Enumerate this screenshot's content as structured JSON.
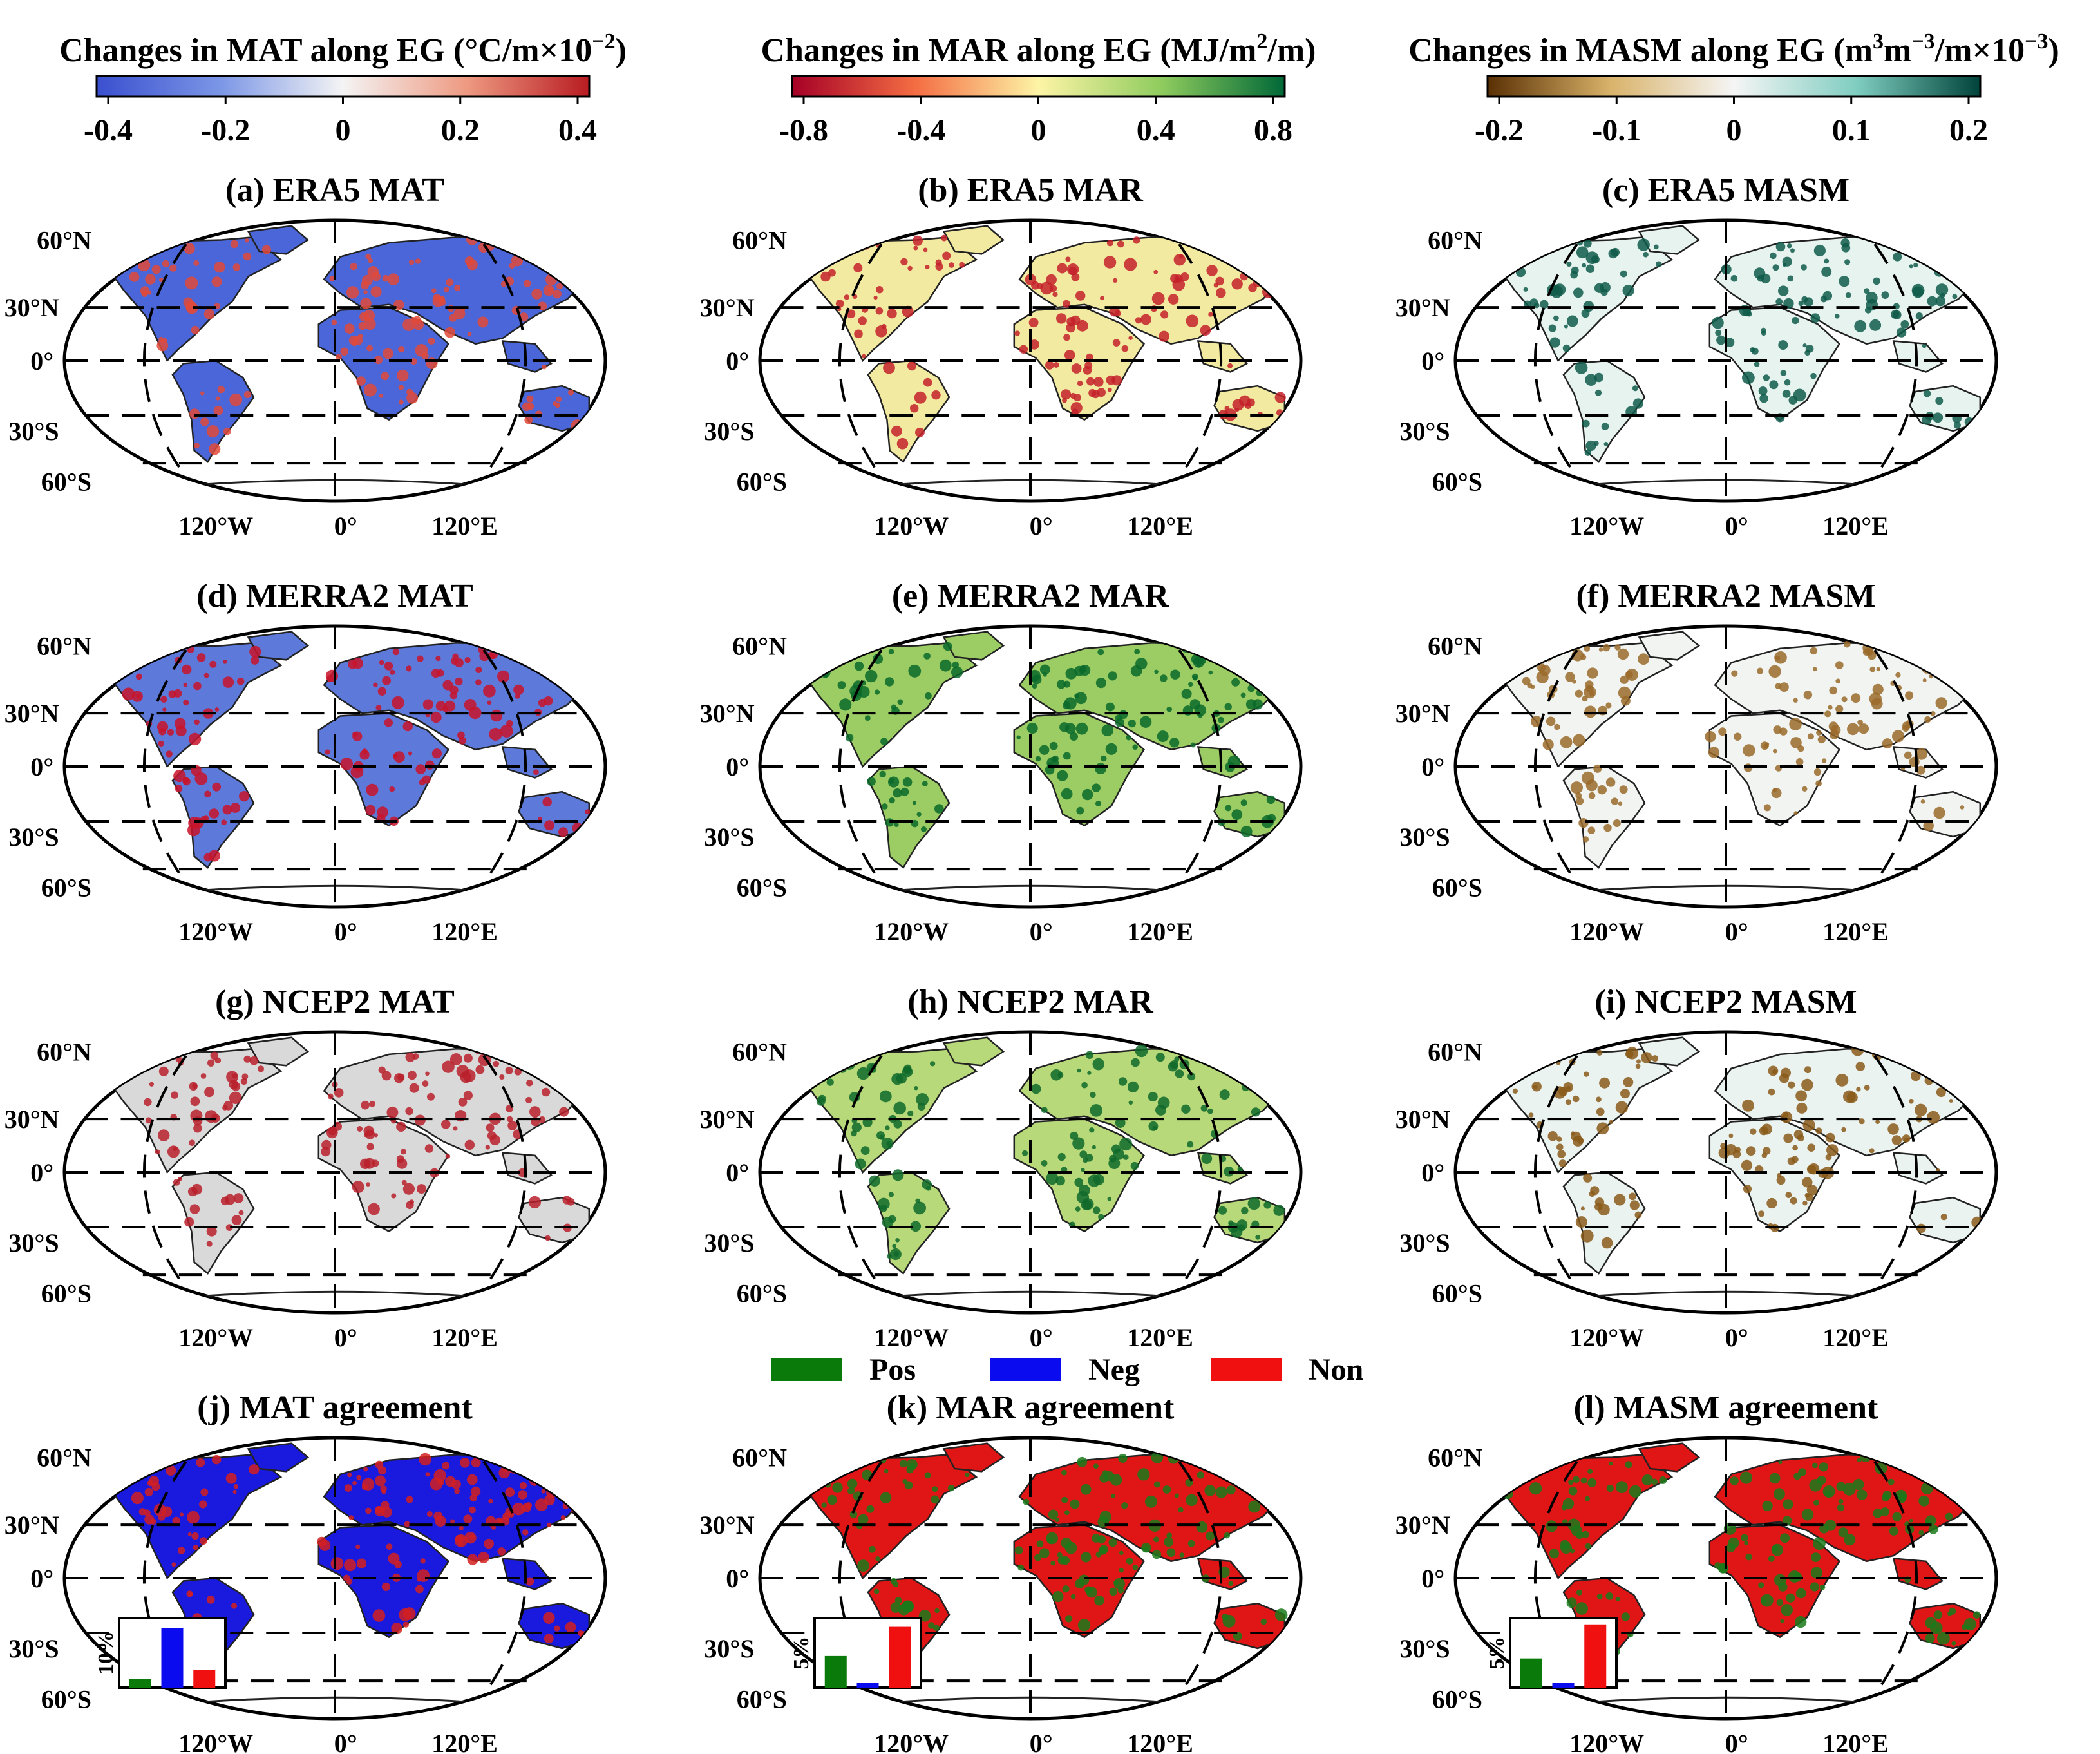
{
  "colorbars": [
    {
      "title": "Changes in MAT along EG (°C/m×10",
      "sup": "−2",
      "after": ")",
      "ticks": [
        "-0.4",
        "-0.2",
        "0",
        "0.2",
        "0.4"
      ],
      "colors": [
        "#3a4fcf",
        "#7b96e6",
        "#f4f4f4",
        "#ee9a82",
        "#b81c22"
      ]
    },
    {
      "title": "Changes in MAR along EG (MJ/m",
      "sup": "2",
      "after": "/m)",
      "ticks": [
        "-0.8",
        "-0.4",
        "0",
        "0.4",
        "0.8"
      ],
      "colors": [
        "#a50026",
        "#f46d43",
        "#fdf4a6",
        "#8fcc5e",
        "#006837"
      ]
    },
    {
      "title": "Changes in MASM along EG  (m",
      "sup": "3",
      "mid": "m",
      "sup2": "−3",
      "after2": "/m×10",
      "sup3": "−3",
      "after": ")",
      "ticks": [
        "-0.2",
        "-0.1",
        "0",
        "0.1",
        "0.2"
      ],
      "colors": [
        "#5a3004",
        "#d9b36a",
        "#f5f5f5",
        "#7fcdc0",
        "#00433a"
      ]
    }
  ],
  "panels": [
    {
      "id": "a",
      "title": "(a) ERA5 MAT",
      "land": "#4a66d8",
      "spots": "#e04a3a"
    },
    {
      "id": "b",
      "title": "(b) ERA5 MAR",
      "land": "#f2eaa0",
      "spots": "#c4212a"
    },
    {
      "id": "c",
      "title": "(c) ERA5 MASM",
      "land": "#e6f3ef",
      "spots": "#0f5a4a"
    },
    {
      "id": "d",
      "title": "(d) MERRA2 MAT",
      "land": "#5d79d9",
      "spots": "#c8142a"
    },
    {
      "id": "e",
      "title": "(e) MERRA2 MAR",
      "land": "#9ccd64",
      "spots": "#0a6a2a"
    },
    {
      "id": "f",
      "title": "(f) MERRA2 MASM",
      "land": "#f1f4f1",
      "spots": "#9a6a2a"
    },
    {
      "id": "g",
      "title": "(g) NCEP2 MAT",
      "land": "#d9d9d9",
      "spots": "#b8202a"
    },
    {
      "id": "h",
      "title": "(h) NCEP2 MAR",
      "land": "#b7d97a",
      "spots": "#0f6a2a"
    },
    {
      "id": "i",
      "title": "(i) NCEP2 MASM",
      "land": "#eaf3f0",
      "spots": "#8a5a1a"
    },
    {
      "id": "j",
      "title": "(j) MAT agreement",
      "land": "#1a1adf",
      "spots": "#d42020"
    },
    {
      "id": "k",
      "title": "(k) MAR agreement",
      "land": "#e01515",
      "spots": "#1a7a1a"
    },
    {
      "id": "l",
      "title": "(l) MASM agreement",
      "land": "#e01515",
      "spots": "#1a7a1a"
    }
  ],
  "map_labels": {
    "lat": [
      "60°N",
      "30°N",
      "0°",
      "30°S",
      "60°S"
    ],
    "lon": [
      "120°W",
      "0°",
      "120°E"
    ]
  },
  "legend": [
    {
      "label": "Pos",
      "color": "#0a7a0a"
    },
    {
      "label": "Neg",
      "color": "#0b0bf0"
    },
    {
      "label": "Non",
      "color": "#f01010"
    }
  ],
  "inset_charts": [
    {
      "panel": "j",
      "ylabel": "10%",
      "categories": [
        "Pos",
        "Neg",
        "Non"
      ],
      "values": [
        3,
        20,
        6
      ],
      "ymax": 22,
      "colors": [
        "#0a7a0a",
        "#0b0bf0",
        "#f01010"
      ]
    },
    {
      "panel": "k",
      "ylabel": "5%",
      "categories": [
        "Pos",
        "Neg",
        "Non"
      ],
      "values": [
        6.5,
        1,
        12.5
      ],
      "ymax": 13.5,
      "colors": [
        "#0a7a0a",
        "#0b0bf0",
        "#f01010"
      ]
    },
    {
      "panel": "l",
      "ylabel": "5%",
      "categories": [
        "Pos",
        "Neg",
        "Non"
      ],
      "values": [
        6,
        1,
        13
      ],
      "ymax": 13.5,
      "colors": [
        "#0a7a0a",
        "#0b0bf0",
        "#f01010"
      ]
    }
  ]
}
